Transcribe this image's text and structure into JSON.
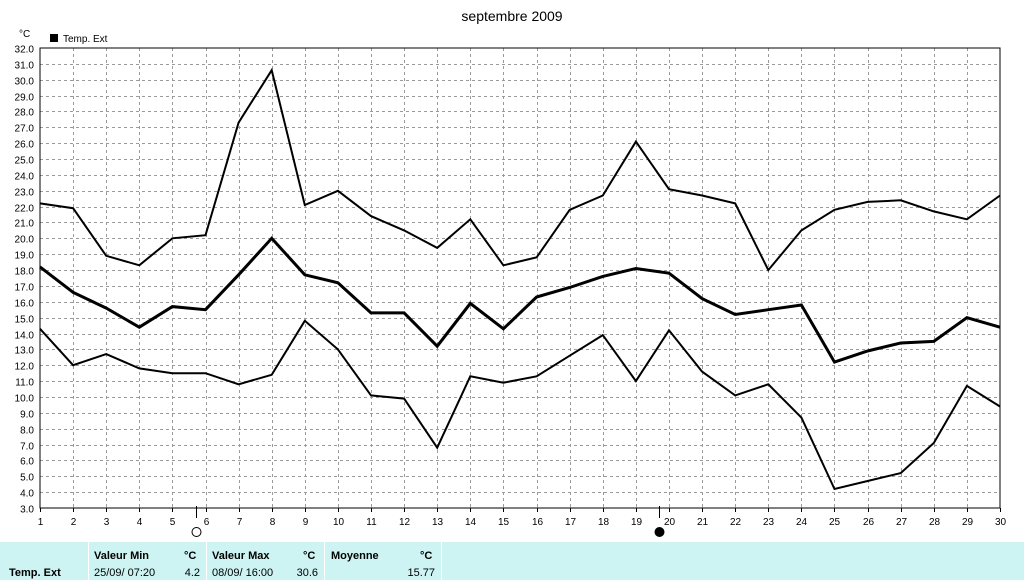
{
  "chart_data": {
    "type": "line",
    "title": "septembre 2009",
    "unit_label": "°C",
    "legend": [
      {
        "name": "Temp. Ext",
        "color": "#000000"
      }
    ],
    "ylim": [
      3.0,
      32.0
    ],
    "y_ticks": [
      "3.0",
      "4.0",
      "5.0",
      "6.0",
      "7.0",
      "8.0",
      "9.0",
      "10.0",
      "11.0",
      "12.0",
      "13.0",
      "14.0",
      "15.0",
      "16.0",
      "17.0",
      "18.0",
      "19.0",
      "20.0",
      "21.0",
      "22.0",
      "23.0",
      "24.0",
      "25.0",
      "26.0",
      "27.0",
      "28.0",
      "29.0",
      "30.0",
      "31.0",
      "32.0"
    ],
    "x": [
      1,
      2,
      3,
      4,
      5,
      6,
      7,
      8,
      9,
      10,
      11,
      12,
      13,
      14,
      15,
      16,
      17,
      18,
      19,
      20,
      21,
      22,
      23,
      24,
      25,
      26,
      27,
      28,
      29,
      30
    ],
    "grid": true,
    "series": [
      {
        "role": "max",
        "values": [
          22.2,
          21.9,
          18.9,
          18.3,
          20.0,
          20.2,
          27.3,
          30.6,
          22.1,
          23.0,
          21.4,
          20.5,
          19.4,
          21.2,
          18.3,
          18.8,
          21.8,
          22.7,
          26.1,
          23.1,
          22.7,
          22.2,
          18.0,
          20.5,
          21.8,
          22.3,
          22.4,
          21.7,
          21.2,
          22.7
        ]
      },
      {
        "role": "mean",
        "values": [
          18.2,
          16.6,
          15.6,
          14.4,
          15.7,
          15.5,
          17.7,
          20.0,
          17.7,
          17.2,
          15.3,
          15.3,
          13.2,
          15.9,
          14.3,
          16.3,
          16.9,
          17.6,
          18.1,
          17.8,
          16.2,
          15.2,
          15.5,
          15.8,
          12.2,
          12.9,
          13.4,
          13.5,
          15.0,
          14.4
        ]
      },
      {
        "role": "min",
        "values": [
          14.3,
          12.0,
          12.7,
          11.8,
          11.5,
          11.5,
          10.8,
          11.4,
          14.8,
          13.0,
          10.1,
          9.9,
          6.8,
          11.3,
          10.9,
          11.3,
          12.6,
          13.9,
          11.0,
          14.2,
          11.6,
          10.1,
          10.8,
          8.7,
          4.2,
          4.7,
          5.2,
          7.1,
          10.7,
          9.4
        ]
      }
    ],
    "moon_markers": [
      {
        "day": 5,
        "phase": "full"
      },
      {
        "day": 19,
        "phase": "new"
      }
    ]
  },
  "stats": {
    "row_label": "Temp. Ext",
    "min": {
      "label": "Valeur Min",
      "unit": "°C",
      "when": "25/09/  07:20",
      "value": "4.2"
    },
    "max": {
      "label": "Valeur Max",
      "unit": "°C",
      "when": "08/09/  16:00",
      "value": "30.6"
    },
    "avg": {
      "label": "Moyenne",
      "unit": "°C",
      "value": "15.77"
    }
  }
}
